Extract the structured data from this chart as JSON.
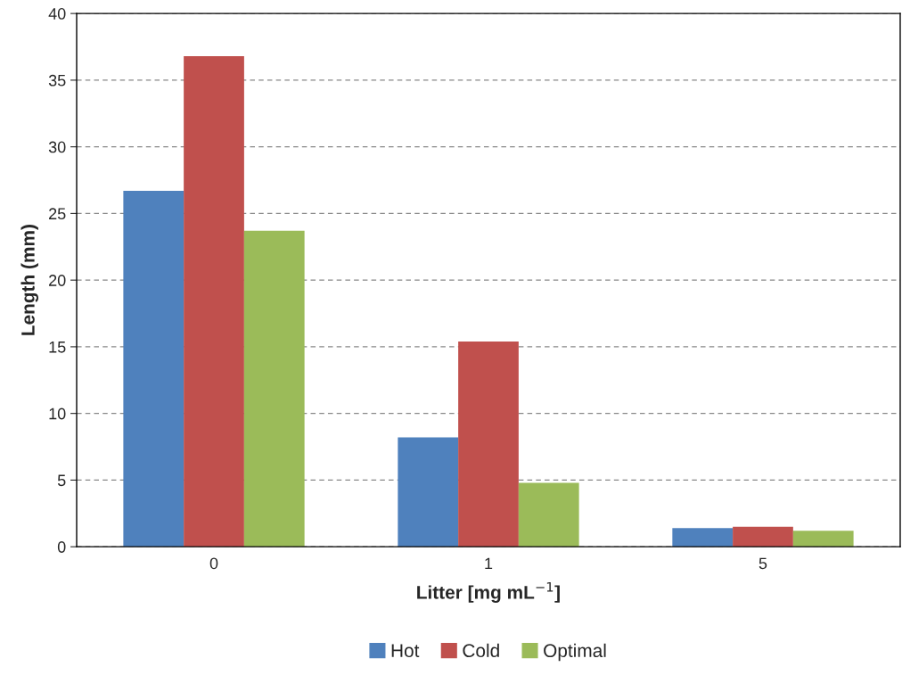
{
  "chart_data": {
    "type": "bar",
    "xlabel": "Litter [mg mL$^{−1}$]",
    "ylabel": "Length (mm)",
    "categories": [
      "0",
      "1",
      "5"
    ],
    "series": [
      {
        "name": "Hot",
        "color": "#4f81bd",
        "values": [
          26.7,
          8.2,
          1.4
        ]
      },
      {
        "name": "Cold",
        "color": "#c0504d",
        "values": [
          36.8,
          15.4,
          1.5
        ]
      },
      {
        "name": "Optimal",
        "color": "#9bbb59",
        "values": [
          23.7,
          4.8,
          1.2
        ]
      }
    ],
    "ylim": [
      0,
      40
    ],
    "yticks": [
      0,
      5,
      10,
      15,
      20,
      25,
      30,
      35,
      40
    ],
    "grid": "y",
    "legend": "bottom"
  }
}
